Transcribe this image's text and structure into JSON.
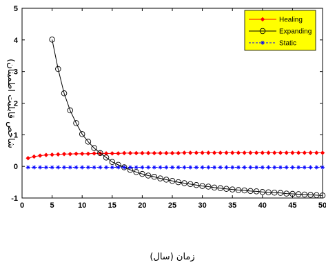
{
  "chart_data": {
    "type": "line",
    "xlabel": "زمان (سال)",
    "ylabel": "شاخص قابلیت اطمینان)",
    "xlim": [
      0,
      50
    ],
    "ylim": [
      -1,
      5
    ],
    "xticks": [
      0,
      5,
      10,
      15,
      20,
      25,
      30,
      35,
      40,
      45,
      50
    ],
    "yticks": [
      -1,
      0,
      1,
      2,
      3,
      4,
      5
    ],
    "grid": false,
    "legend_position": "top-right",
    "legend_background": "#ffff00",
    "series": [
      {
        "name": "Healing",
        "color": "#ff0000",
        "marker": "diamond-filled",
        "line": "solid",
        "x": [
          1,
          2,
          3,
          4,
          5,
          6,
          7,
          8,
          9,
          10,
          11,
          12,
          13,
          14,
          15,
          16,
          17,
          18,
          19,
          20,
          21,
          22,
          23,
          24,
          25,
          26,
          27,
          28,
          29,
          30,
          31,
          32,
          33,
          34,
          35,
          36,
          37,
          38,
          39,
          40,
          41,
          42,
          43,
          44,
          45,
          46,
          47,
          48,
          49,
          50
        ],
        "y": [
          0.26,
          0.31,
          0.34,
          0.36,
          0.37,
          0.38,
          0.39,
          0.39,
          0.4,
          0.4,
          0.4,
          0.41,
          0.41,
          0.41,
          0.41,
          0.41,
          0.42,
          0.42,
          0.42,
          0.42,
          0.42,
          0.42,
          0.42,
          0.42,
          0.42,
          0.42,
          0.43,
          0.43,
          0.43,
          0.43,
          0.43,
          0.43,
          0.43,
          0.43,
          0.43,
          0.43,
          0.43,
          0.43,
          0.43,
          0.43,
          0.43,
          0.43,
          0.43,
          0.43,
          0.43,
          0.43,
          0.43,
          0.43,
          0.43,
          0.43
        ]
      },
      {
        "name": "Expanding",
        "color": "#000000",
        "marker": "circle-open",
        "line": "solid",
        "x": [
          5,
          6,
          7,
          8,
          9,
          10,
          11,
          12,
          13,
          14,
          15,
          16,
          17,
          18,
          19,
          20,
          21,
          22,
          23,
          24,
          25,
          26,
          27,
          28,
          29,
          30,
          31,
          32,
          33,
          34,
          35,
          36,
          37,
          38,
          39,
          40,
          41,
          42,
          43,
          44,
          45,
          46,
          47,
          48,
          49,
          50
        ],
        "y": [
          4.01,
          3.08,
          2.31,
          1.77,
          1.37,
          1.02,
          0.78,
          0.58,
          0.42,
          0.28,
          0.14,
          0.05,
          -0.03,
          -0.11,
          -0.18,
          -0.24,
          -0.29,
          -0.33,
          -0.38,
          -0.42,
          -0.46,
          -0.5,
          -0.53,
          -0.56,
          -0.59,
          -0.62,
          -0.64,
          -0.67,
          -0.69,
          -0.71,
          -0.73,
          -0.75,
          -0.76,
          -0.78,
          -0.79,
          -0.81,
          -0.82,
          -0.83,
          -0.84,
          -0.86,
          -0.87,
          -0.88,
          -0.89,
          -0.9,
          -0.91,
          -0.92
        ]
      },
      {
        "name": "Static",
        "color": "#0000ff",
        "marker": "star",
        "line": "dashed",
        "x": [
          1,
          2,
          3,
          4,
          5,
          6,
          7,
          8,
          9,
          10,
          11,
          12,
          13,
          14,
          15,
          16,
          17,
          18,
          19,
          20,
          21,
          22,
          23,
          24,
          25,
          26,
          27,
          28,
          29,
          30,
          31,
          32,
          33,
          34,
          35,
          36,
          37,
          38,
          39,
          40,
          41,
          42,
          43,
          44,
          45,
          46,
          47,
          48,
          49,
          50
        ],
        "y": [
          -0.03,
          -0.03,
          -0.03,
          -0.03,
          -0.03,
          -0.03,
          -0.03,
          -0.03,
          -0.03,
          -0.03,
          -0.03,
          -0.03,
          -0.03,
          -0.03,
          -0.03,
          -0.03,
          -0.03,
          -0.03,
          -0.03,
          -0.03,
          -0.03,
          -0.03,
          -0.03,
          -0.03,
          -0.03,
          -0.03,
          -0.03,
          -0.03,
          -0.03,
          -0.03,
          -0.03,
          -0.03,
          -0.03,
          -0.03,
          -0.03,
          -0.03,
          -0.03,
          -0.03,
          -0.03,
          -0.03,
          -0.03,
          -0.03,
          -0.03,
          -0.03,
          -0.03,
          -0.03,
          -0.03,
          -0.03,
          -0.03,
          -0.03
        ]
      }
    ]
  }
}
